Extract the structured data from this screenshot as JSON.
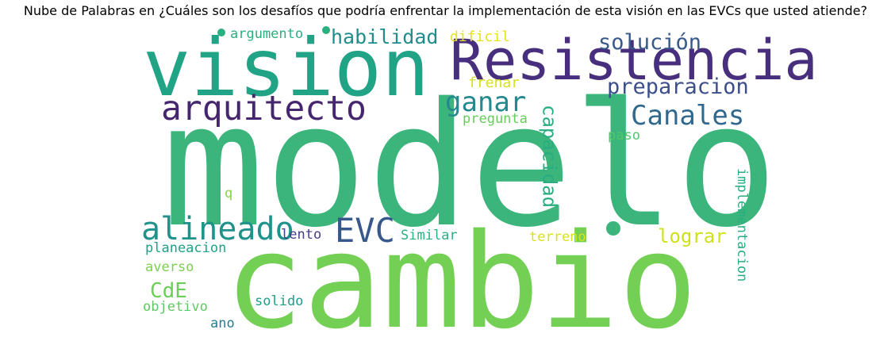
{
  "title": "Nube de Palabras en ¿Cuáles son los desafíos que podría enfrentar la implementación de esta visión en las EVCs que usted atiende?",
  "chart_data": {
    "type": "wordcloud",
    "title": "Nube de Palabras en ¿Cuáles son los desafíos que podría enfrentar la implementación de esta visión en las EVCs que usted atiende?",
    "colormap": "viridis",
    "background": "#ffffff",
    "words": [
      {
        "text": "modelo",
        "weight": 1.0,
        "color": "#3bb57b",
        "rotate": 0
      },
      {
        "text": "cambio",
        "weight": 0.9,
        "color": "#74d055",
        "rotate": 0
      },
      {
        "text": "vision",
        "weight": 0.65,
        "color": "#21a386",
        "rotate": 0
      },
      {
        "text": "Resistencia",
        "weight": 0.6,
        "color": "#482f7e",
        "rotate": 0
      },
      {
        "text": "arquitecto",
        "weight": 0.35,
        "color": "#46266e",
        "rotate": 0
      },
      {
        "text": "EVC",
        "weight": 0.35,
        "color": "#38588c",
        "rotate": 0
      },
      {
        "text": "alineado",
        "weight": 0.32,
        "color": "#20928c",
        "rotate": 0
      },
      {
        "text": "Canales",
        "weight": 0.28,
        "color": "#31688e",
        "rotate": 0
      },
      {
        "text": "ganar",
        "weight": 0.28,
        "color": "#23898e",
        "rotate": 0
      },
      {
        "text": "solución",
        "weight": 0.22,
        "color": "#37598c",
        "rotate": 0
      },
      {
        "text": "preparacion",
        "weight": 0.22,
        "color": "#3c4f8a",
        "rotate": 0
      },
      {
        "text": "habilidad",
        "weight": 0.2,
        "color": "#228c8d",
        "rotate": 0
      },
      {
        "text": "capacidad",
        "weight": 0.2,
        "color": "#27ad81",
        "rotate": 270
      },
      {
        "text": "lograr",
        "weight": 0.18,
        "color": "#d0e11c",
        "rotate": 0
      },
      {
        "text": "CdE",
        "weight": 0.17,
        "color": "#6ccd5a",
        "rotate": 0
      },
      {
        "text": "Similar",
        "weight": 0.12,
        "color": "#2ab07f",
        "rotate": 0
      },
      {
        "text": "lento",
        "weight": 0.12,
        "color": "#433e85",
        "rotate": 0
      },
      {
        "text": "argumento",
        "weight": 0.12,
        "color": "#2ab07f",
        "rotate": 0
      },
      {
        "text": "dificil",
        "weight": 0.12,
        "color": "#e5e419",
        "rotate": 0
      },
      {
        "text": "frenar",
        "weight": 0.12,
        "color": "#d8e219",
        "rotate": 0
      },
      {
        "text": "pregunta",
        "weight": 0.12,
        "color": "#67cc5c",
        "rotate": 0
      },
      {
        "text": "paso",
        "weight": 0.12,
        "color": "#52c569",
        "rotate": 0
      },
      {
        "text": "terreno",
        "weight": 0.12,
        "color": "#d8e219",
        "rotate": 0
      },
      {
        "text": "implementacion",
        "weight": 0.12,
        "color": "#29af7f",
        "rotate": 270
      },
      {
        "text": "planeacion",
        "weight": 0.12,
        "color": "#1fa187",
        "rotate": 0
      },
      {
        "text": "averso",
        "weight": 0.12,
        "color": "#7ad151",
        "rotate": 0
      },
      {
        "text": "objetivo",
        "weight": 0.12,
        "color": "#5ec962",
        "rotate": 0
      },
      {
        "text": "solido",
        "weight": 0.12,
        "color": "#1f9e89",
        "rotate": 0
      },
      {
        "text": "ano",
        "weight": 0.12,
        "color": "#287c8e",
        "rotate": 0
      },
      {
        "text": "q",
        "weight": 0.12,
        "color": "#86d549",
        "rotate": 0
      }
    ]
  }
}
